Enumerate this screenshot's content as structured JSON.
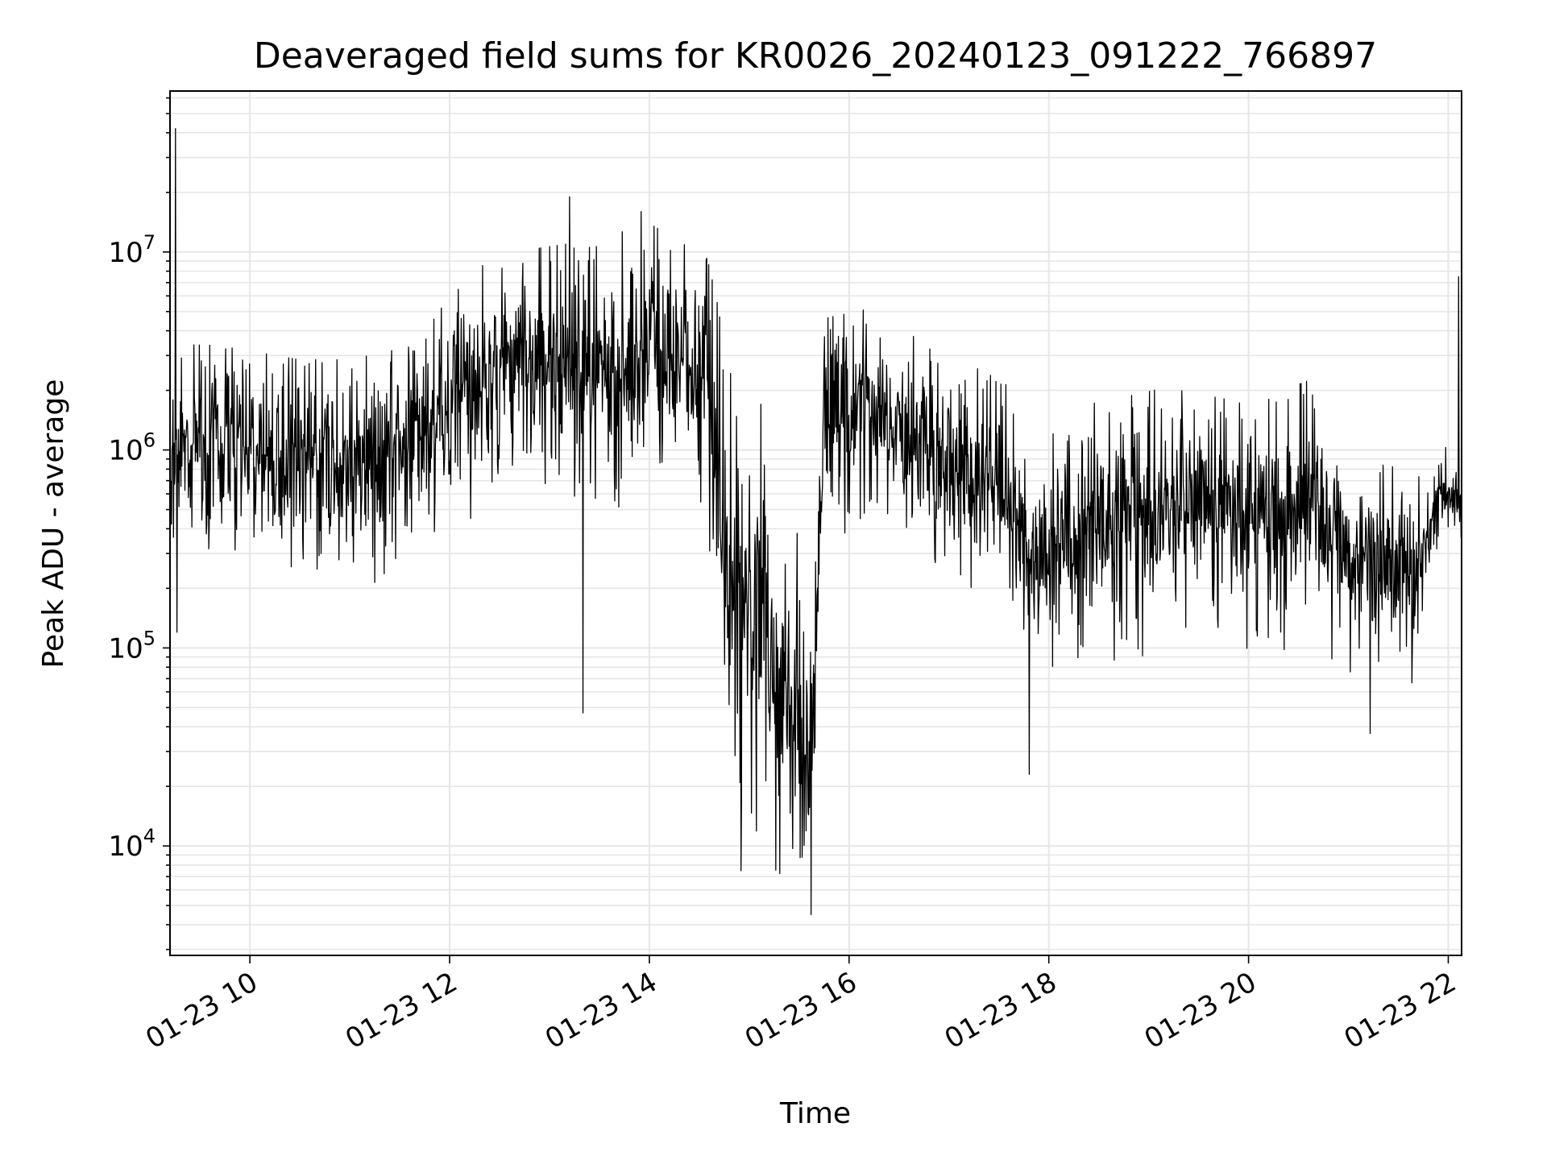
{
  "chart_data": {
    "type": "line",
    "title": "Deaveraged field sums for KR0026_20240123_091222_766897",
    "xlabel": "Time",
    "ylabel": "Peak ADU - average",
    "x_axis": {
      "kind": "time",
      "range": [
        "2024-01-23 09:12",
        "2024-01-23 22:08"
      ],
      "ticks": [
        "01-23 10",
        "01-23 12",
        "01-23 14",
        "01-23 16",
        "01-23 18",
        "01-23 20",
        "01-23 22"
      ]
    },
    "y_axis": {
      "scale": "log",
      "range": [
        2800,
        65000000
      ],
      "ticks": [
        {
          "value": 10000,
          "base": "10",
          "exp": "4"
        },
        {
          "value": 100000,
          "base": "10",
          "exp": "5"
        },
        {
          "value": 1000000,
          "base": "10",
          "exp": "6"
        },
        {
          "value": 10000000,
          "base": "10",
          "exp": "7"
        }
      ]
    },
    "grid": true,
    "line_color": "#000000",
    "grid_color": "#e6e6e6",
    "series": [
      {
        "name": "",
        "envelope": [
          {
            "t": "2024-01-23 09:12",
            "baseline": 800000,
            "low": 200000,
            "high": 3000000
          },
          {
            "t": "2024-01-23 09:40",
            "baseline": 1100000,
            "low": 250000,
            "high": 3000000
          },
          {
            "t": "2024-01-23 10:30",
            "baseline": 900000,
            "low": 150000,
            "high": 2500000
          },
          {
            "t": "2024-01-23 11:00",
            "baseline": 800000,
            "low": 150000,
            "high": 2500000
          },
          {
            "t": "2024-01-23 11:40",
            "baseline": 1200000,
            "low": 250000,
            "high": 3000000
          },
          {
            "t": "2024-01-23 12:10",
            "baseline": 2200000,
            "low": 400000,
            "high": 7000000
          },
          {
            "t": "2024-01-23 12:50",
            "baseline": 2800000,
            "low": 500000,
            "high": 9000000
          },
          {
            "t": "2024-01-23 13:30",
            "baseline": 2500000,
            "low": 400000,
            "high": 10000000
          },
          {
            "t": "2024-01-23 14:00",
            "baseline": 3000000,
            "low": 500000,
            "high": 12000000
          },
          {
            "t": "2024-01-23 14:35",
            "baseline": 2500000,
            "low": 400000,
            "high": 8000000
          },
          {
            "t": "2024-01-23 14:45",
            "baseline": 300000,
            "low": 20000,
            "high": 3000000
          },
          {
            "t": "2024-01-23 15:00",
            "baseline": 150000,
            "low": 10000,
            "high": 2000000
          },
          {
            "t": "2024-01-23 15:30",
            "baseline": 40000,
            "low": 12000,
            "high": 700000
          },
          {
            "t": "2024-01-23 15:38",
            "baseline": 30000,
            "low": 15000,
            "high": 300000
          },
          {
            "t": "2024-01-23 15:45",
            "baseline": 1500000,
            "low": 200000,
            "high": 4000000
          },
          {
            "t": "2024-01-23 16:10",
            "baseline": 1600000,
            "low": 300000,
            "high": 4500000
          },
          {
            "t": "2024-01-23 16:50",
            "baseline": 1000000,
            "low": 250000,
            "high": 3000000
          },
          {
            "t": "2024-01-23 17:30",
            "baseline": 700000,
            "low": 150000,
            "high": 2000000
          },
          {
            "t": "2024-01-23 17:50",
            "baseline": 300000,
            "low": 70000,
            "high": 1500000
          },
          {
            "t": "2024-01-23 18:30",
            "baseline": 400000,
            "low": 80000,
            "high": 1500000
          },
          {
            "t": "2024-01-23 19:10",
            "baseline": 500000,
            "low": 100000,
            "high": 1800000
          },
          {
            "t": "2024-01-23 20:00",
            "baseline": 450000,
            "low": 90000,
            "high": 1500000
          },
          {
            "t": "2024-01-23 20:40",
            "baseline": 550000,
            "low": 100000,
            "high": 2000000
          },
          {
            "t": "2024-01-23 21:00",
            "baseline": 300000,
            "low": 70000,
            "high": 800000
          },
          {
            "t": "2024-01-23 21:40",
            "baseline": 250000,
            "low": 60000,
            "high": 700000
          },
          {
            "t": "2024-01-23 21:55",
            "baseline": 550000,
            "low": 350000,
            "high": 1000000
          },
          {
            "t": "2024-01-23 22:08",
            "baseline": 600000,
            "low": 400000,
            "high": 1200000
          }
        ],
        "notable_points": [
          {
            "t": "2024-01-23 09:15",
            "y": 42000000
          },
          {
            "t": "2024-01-23 09:16",
            "y": 120000
          },
          {
            "t": "2024-01-23 13:12",
            "y": 19000000
          },
          {
            "t": "2024-01-23 13:20",
            "y": 47000
          },
          {
            "t": "2024-01-23 13:55",
            "y": 16000000
          },
          {
            "t": "2024-01-23 14:55",
            "y": 7500
          },
          {
            "t": "2024-01-23 15:37",
            "y": 4500
          },
          {
            "t": "2024-01-23 17:48",
            "y": 23000
          },
          {
            "t": "2024-01-23 21:13",
            "y": 37000
          },
          {
            "t": "2024-01-23 22:06",
            "y": 7500000
          }
        ]
      }
    ]
  }
}
